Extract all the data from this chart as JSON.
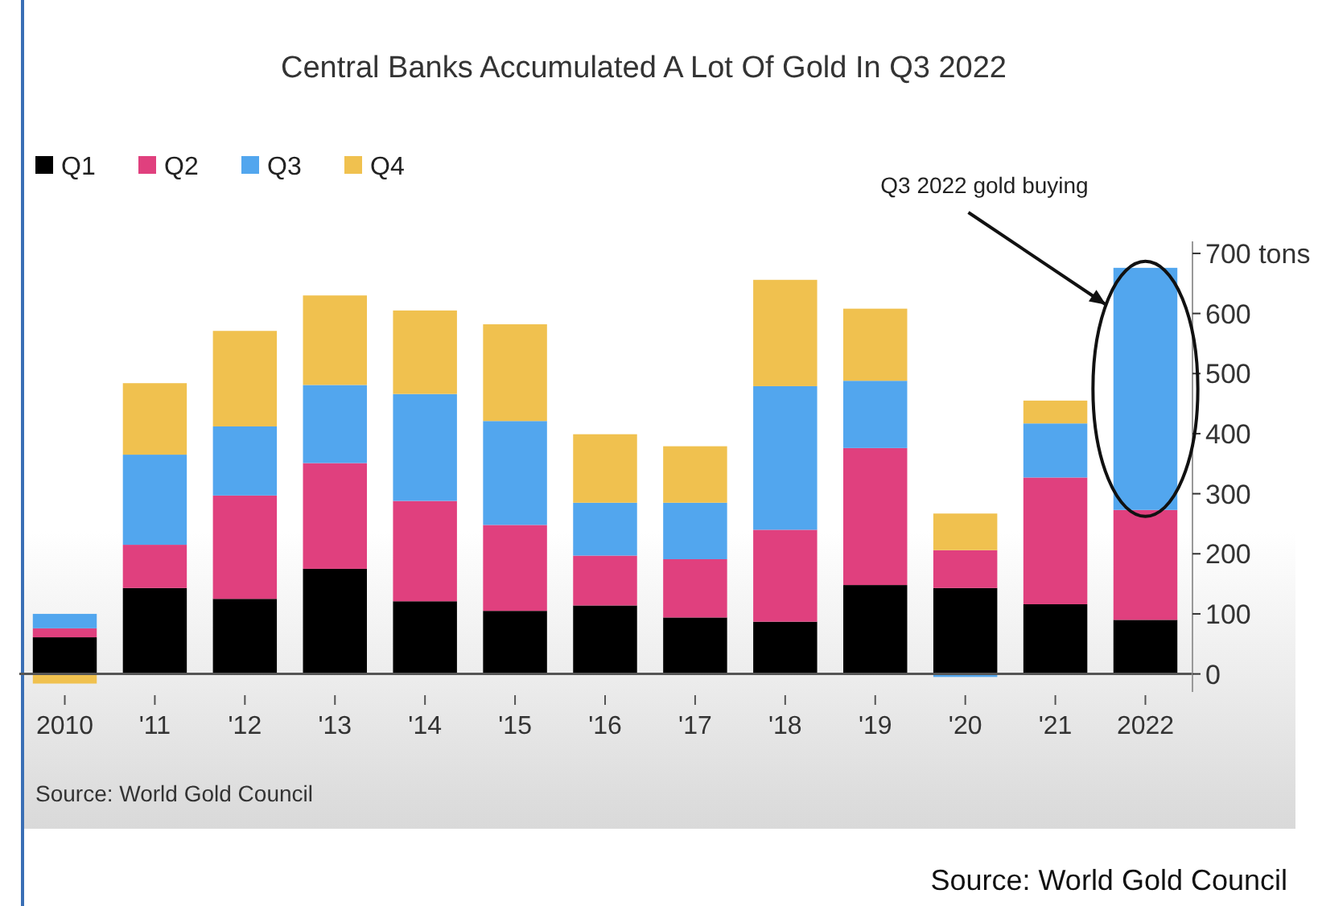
{
  "chart_data": {
    "type": "bar",
    "title": "Central Banks Accumulated A Lot Of Gold In Q3 2022",
    "categories": [
      "2010",
      "'11",
      "'12",
      "'13",
      "'14",
      "'15",
      "'16",
      "'17",
      "'18",
      "'19",
      "'20",
      "'21",
      "2022"
    ],
    "stacked": true,
    "series": [
      {
        "name": "Q1",
        "color": "#000000",
        "values": [
          61,
          143,
          125,
          175,
          121,
          105,
          114,
          94,
          87,
          148,
          143,
          116,
          90
        ]
      },
      {
        "name": "Q2",
        "color": "#e0407e",
        "values": [
          15,
          72,
          172,
          176,
          167,
          143,
          83,
          97,
          153,
          228,
          63,
          211,
          183
        ]
      },
      {
        "name": "Q3",
        "color": "#52a6ee",
        "values": [
          24,
          150,
          115,
          130,
          178,
          173,
          88,
          94,
          239,
          112,
          -5,
          90,
          403
        ]
      },
      {
        "name": "Q4",
        "color": "#f0c14f",
        "values": [
          -16,
          119,
          159,
          149,
          139,
          161,
          114,
          94,
          177,
          120,
          61,
          38,
          null
        ]
      }
    ],
    "ylim": [
      -30,
      720
    ],
    "yticks": [
      0,
      100,
      200,
      300,
      400,
      500,
      600,
      {
        "value": 700,
        "label": "700 tons"
      }
    ],
    "legend": "top left",
    "grid": false,
    "annotations": [
      "Q3 2022 gold buying",
      "Source: World Gold Council",
      "Source: World Gold Council"
    ]
  }
}
